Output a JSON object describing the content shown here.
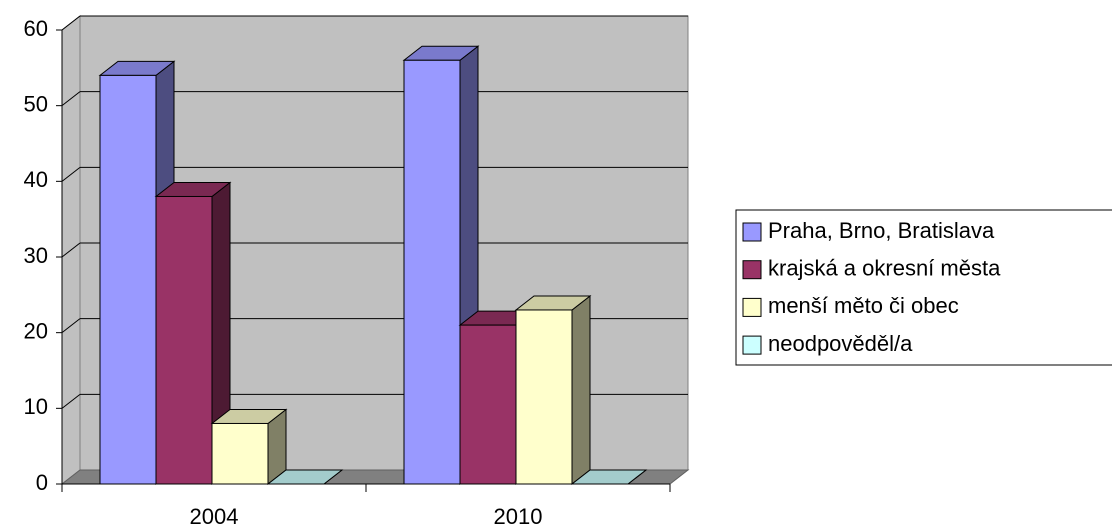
{
  "chart_data": {
    "type": "bar3d",
    "categories": [
      "2004",
      "2010"
    ],
    "series": [
      {
        "name": "Praha, Brno, Bratislava",
        "color": "#9999ff",
        "values": [
          54,
          56
        ]
      },
      {
        "name": "krajská a okresní města",
        "color": "#993366",
        "values": [
          38,
          21
        ]
      },
      {
        "name": "menší měto či obec",
        "color": "#ffffcc",
        "values": [
          8,
          23
        ]
      },
      {
        "name": "neodpověděl/a",
        "color": "#ccffff",
        "values": [
          0,
          0
        ]
      }
    ],
    "ylim": [
      0,
      60
    ],
    "yticks": [
      0,
      10,
      20,
      30,
      40,
      50,
      60
    ],
    "grid": true,
    "legend": "right"
  }
}
